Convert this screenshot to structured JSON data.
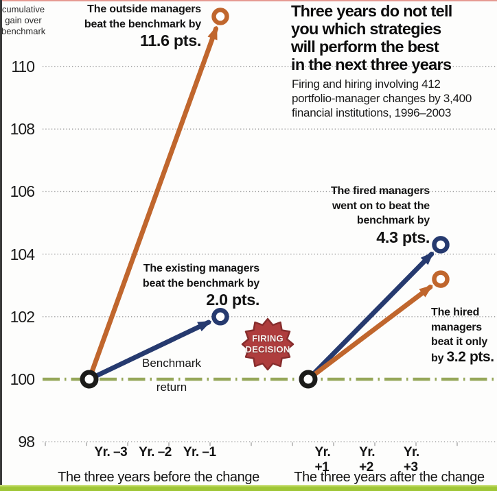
{
  "colors": {
    "orange": "#c0662d",
    "navy": "#263a6f",
    "marker_black": "#1c1c1a",
    "benchmark": "#96a75a",
    "grid": "#979797",
    "badge": "#ae3d3d",
    "badge_border": "#872d2d",
    "bottom_bar": "#9fc636"
  },
  "header": {
    "title_lines": [
      "Three years do not tell",
      "you which strategies",
      "will perform the best",
      "in the next three years"
    ],
    "subtitle_lines": [
      "Firing and hiring involving 412",
      "portfolio-manager changes by 3,400",
      "financial institutions, 1996–2003"
    ]
  },
  "y_axis": {
    "title_lines": [
      "cumulative",
      "gain over",
      "benchmark"
    ],
    "ticks": [
      "110",
      "108",
      "106",
      "104",
      "102",
      "100",
      "98"
    ]
  },
  "annotations": {
    "outside": {
      "line1": "The outside managers",
      "line2": "beat the benchmark by",
      "value": "11.6 pts."
    },
    "existing": {
      "line1": "The existing managers",
      "line2": "beat the benchmark by",
      "value": "2.0 pts."
    },
    "fired": {
      "line1": "The fired managers",
      "line2": "went on to beat the",
      "line3": "benchmark by",
      "value": "4.3 pts."
    },
    "hired": {
      "line1": "The hired",
      "line2": "managers",
      "line3": "beat it only",
      "value_prefix": "by ",
      "value": "3.2 pts."
    },
    "benchmark_line1": "Benchmark",
    "benchmark_line2": "return"
  },
  "badge": {
    "line1": "FIRING",
    "line2": "DECISION"
  },
  "x_axis": {
    "before": {
      "labels": [
        "Yr. –3",
        "Yr. –2",
        "Yr. –1"
      ],
      "caption": "The three years before the change"
    },
    "after": {
      "labels": [
        "Yr. +1",
        "Yr. +2",
        "Yr. +3"
      ],
      "caption": "The three years after the change"
    }
  },
  "chart_data": {
    "type": "line",
    "title": "Three years do not tell you which strategies will perform the best in the next three years",
    "subtitle": "Firing and hiring involving 412 portfolio-manager changes by 3,400 financial institutions, 1996–2003",
    "ylabel": "cumulative gain over benchmark",
    "ylim": [
      97,
      112.5
    ],
    "yticks": [
      110,
      108,
      106,
      104,
      102,
      100,
      98
    ],
    "grid": "dotted-horizontal",
    "benchmark": {
      "value": 100,
      "label": "Benchmark return"
    },
    "panels": [
      {
        "caption": "The three years before the change",
        "x_labels": [
          "Yr. –3",
          "Yr. –2",
          "Yr. –1"
        ],
        "series": [
          {
            "name": "outside-managers",
            "color": "#c0662d",
            "points": [
              {
                "x": "Yr. –3",
                "y": 100
              },
              {
                "x": "Yr. –1",
                "y": 111.6
              }
            ],
            "annotation": "The outside managers beat the benchmark by 11.6 pts."
          },
          {
            "name": "existing-managers",
            "color": "#263a6f",
            "points": [
              {
                "x": "Yr. –3",
                "y": 100
              },
              {
                "x": "Yr. –1",
                "y": 102.0
              }
            ],
            "annotation": "The existing managers beat the benchmark by 2.0 pts."
          }
        ]
      },
      {
        "caption": "The three years after the change",
        "x_labels": [
          "Yr. +1",
          "Yr. +2",
          "Yr. +3"
        ],
        "series": [
          {
            "name": "fired-managers",
            "color": "#263a6f",
            "points": [
              {
                "x": "Yr. +1",
                "y": 100
              },
              {
                "x": "Yr. +3",
                "y": 104.3
              }
            ],
            "annotation": "The fired managers went on to beat the benchmark by 4.3 pts."
          },
          {
            "name": "hired-managers",
            "color": "#c0662d",
            "points": [
              {
                "x": "Yr. +1",
                "y": 100
              },
              {
                "x": "Yr. +3",
                "y": 103.2
              }
            ],
            "annotation": "The hired managers beat it only by 3.2 pts."
          }
        ]
      }
    ]
  }
}
